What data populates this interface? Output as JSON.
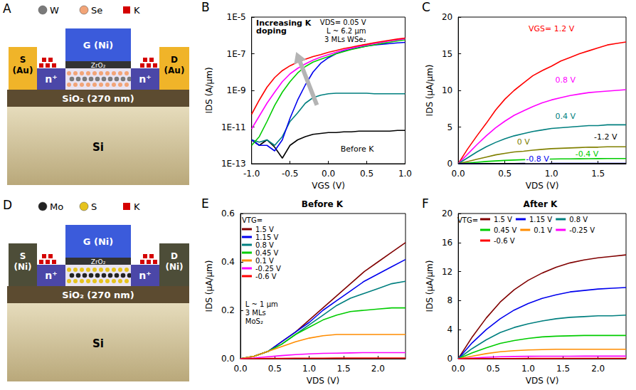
{
  "diagrams": [
    {
      "label": "A",
      "legend": [
        "W",
        "Se",
        "K"
      ],
      "gate": "G (Ni)",
      "dielectric": "ZrO₂",
      "source": "S (Au)",
      "drain": "D (Au)",
      "doped": "n⁺",
      "oxide": "SiO₂ (270 nm)",
      "substrate": "Si"
    },
    {
      "label": "D",
      "legend": [
        "Mo",
        "S",
        "K"
      ],
      "gate": "G (Ni)",
      "dielectric": "ZrO₂",
      "source": "S (Ni)",
      "drain": "D (Ni)",
      "doped": "n⁺",
      "oxide": "SiO₂ (270 nm)",
      "substrate": "Si"
    }
  ],
  "chart_data": [
    {
      "label": "B",
      "type": "line",
      "log": "y",
      "grid": false,
      "xlabel": "VGS (V)",
      "ylabel": "IDS (A/µm)",
      "annotations": [
        "Increasing K doping",
        "VDS= 0.05 V",
        "L ~ 6.2 µm",
        "3 MLs WSe₂",
        "Before K"
      ],
      "xlim": [
        -1,
        1
      ],
      "xticks": [
        {
          "value": -1,
          "label": "-1.0"
        },
        -0.5,
        {
          "value": 0,
          "label": "0.0"
        },
        0.5,
        {
          "value": 1,
          "label": "1.0"
        }
      ],
      "ylim": [
        1e-13,
        1e-05
      ],
      "yticks": [
        {
          "value": 1e-13,
          "label": "1E-13"
        },
        {
          "value": 1e-11,
          "label": "1E-11"
        },
        {
          "value": 1e-09,
          "label": "1E-9"
        },
        {
          "value": 1e-07,
          "label": "1E-7"
        },
        {
          "value": 1e-05,
          "label": "1E-5"
        }
      ],
      "x": [
        -1,
        -0.9,
        -0.8,
        -0.7,
        -0.6,
        -0.5,
        -0.4,
        -0.3,
        -0.2,
        -0.1,
        0,
        0.1,
        0.2,
        0.3,
        0.4,
        0.5,
        0.6,
        0.7,
        0.8,
        0.9,
        1
      ],
      "series": [
        {
          "color": "#000000",
          "values": [
            2e-12,
            1e-12,
            2e-12,
            8e-13,
            2e-13,
            1e-12,
            2e-12,
            3e-12,
            4e-12,
            4.5e-12,
            5e-12,
            5e-12,
            5.5e-12,
            5.5e-12,
            6e-12,
            6e-12,
            6e-12,
            6e-12,
            6e-12,
            6.5e-12,
            6.5e-12
          ]
        },
        {
          "color": "#007f7f",
          "values": [
            2e-12,
            1.5e-12,
            2e-12,
            1e-12,
            3e-12,
            2e-11,
            6e-11,
            2e-10,
            4e-10,
            5.5e-10,
            6.5e-10,
            7e-10,
            7e-10,
            7e-10,
            7e-10,
            7e-10,
            6.5e-10,
            6.5e-10,
            6.5e-10,
            6.5e-10,
            6.5e-10
          ]
        },
        {
          "color": "#0000ee",
          "values": [
            2e-12,
            1e-12,
            1e-12,
            5e-13,
            2e-12,
            3e-11,
            3e-10,
            2e-09,
            1e-08,
            3e-08,
            6e-08,
            1e-07,
            1.4e-07,
            1.8e-07,
            2.2e-07,
            2.6e-07,
            3e-07,
            3.3e-07,
            3.6e-07,
            3.9e-07,
            4.2e-07
          ]
        },
        {
          "color": "#00cc00",
          "values": [
            1e-12,
            3e-12,
            2e-11,
            1.5e-10,
            8e-10,
            3e-09,
            9e-09,
            2e-08,
            3.5e-08,
            5e-08,
            7e-08,
            1e-07,
            1.3e-07,
            1.7e-07,
            2.1e-07,
            2.6e-07,
            3.1e-07,
            3.7e-07,
            4.3e-07,
            5e-07,
            5.7e-07
          ]
        },
        {
          "color": "#ff00ff",
          "values": [
            8e-12,
            4e-11,
            2e-10,
            8e-10,
            3e-09,
            8e-09,
            1.6e-08,
            2.8e-08,
            4.5e-08,
            6.5e-08,
            9e-08,
            1.2e-07,
            1.6e-07,
            2e-07,
            2.5e-07,
            3e-07,
            3.6e-07,
            4.3e-07,
            5e-07,
            5.8e-07,
            6.6e-07
          ]
        },
        {
          "color": "#ff0000",
          "values": [
            5e-11,
            3e-10,
            1.5e-09,
            5e-09,
            1.2e-08,
            2.2e-08,
            3.5e-08,
            5e-08,
            7e-08,
            9e-08,
            1.2e-07,
            1.5e-07,
            1.9e-07,
            2.3e-07,
            2.8e-07,
            3.3e-07,
            4e-07,
            4.7e-07,
            5.5e-07,
            6.3e-07,
            7.2e-07
          ]
        }
      ]
    },
    {
      "label": "C",
      "type": "line",
      "grid": false,
      "xlabel": "VDS (V)",
      "ylabel": "IDS (µA/µm)",
      "xlim": [
        0,
        1.8
      ],
      "xticks": [
        {
          "value": 0,
          "label": "0.0"
        },
        0.5,
        {
          "value": 1,
          "label": "1.0"
        },
        1.5
      ],
      "ylim": [
        0,
        20
      ],
      "yticks": [
        0,
        5,
        10,
        15,
        20
      ],
      "x": [
        0,
        0.1,
        0.2,
        0.3,
        0.4,
        0.5,
        0.6,
        0.7,
        0.8,
        0.9,
        1,
        1.1,
        1.2,
        1.3,
        1.4,
        1.5,
        1.6,
        1.7,
        1.8
      ],
      "series": [
        {
          "label": "VGS= 1.2 V",
          "color": "#ff0000",
          "values": [
            0,
            2,
            3.8,
            5.5,
            7.3,
            8.8,
            10,
            11,
            12,
            12.7,
            13.3,
            14,
            14.5,
            15,
            15.4,
            15.8,
            16.2,
            16.4,
            16.6
          ]
        },
        {
          "label": "0.8 V",
          "color": "#ff00ff",
          "values": [
            0,
            1.3,
            2.6,
            3.8,
            4.9,
            5.8,
            6.6,
            7.2,
            7.8,
            8.3,
            8.7,
            9,
            9.3,
            9.5,
            9.7,
            9.8,
            9.9,
            10,
            10.1
          ]
        },
        {
          "label": "0.4 V",
          "color": "#007f7f",
          "values": [
            0,
            0.8,
            1.6,
            2.3,
            2.9,
            3.4,
            3.8,
            4.1,
            4.4,
            4.6,
            4.8,
            4.9,
            5,
            5.1,
            5.2,
            5.2,
            5.3,
            5.3,
            5.3
          ]
        },
        {
          "label": "0 V",
          "color": "#808000",
          "values": [
            0,
            0.3,
            0.6,
            0.9,
            1.2,
            1.4,
            1.6,
            1.7,
            1.85,
            1.95,
            2.05,
            2.1,
            2.15,
            2.2,
            2.25,
            2.25,
            2.3,
            2.3,
            2.3
          ]
        },
        {
          "label": "-0.4 V",
          "color": "#00cc00",
          "values": [
            0,
            0.1,
            0.2,
            0.3,
            0.38,
            0.45,
            0.5,
            0.55,
            0.58,
            0.61,
            0.63,
            0.65,
            0.66,
            0.67,
            0.68,
            0.69,
            0.7,
            0.7,
            0.7
          ]
        },
        {
          "label": "-0.8 V",
          "color": "#0000ee",
          "values": [
            0,
            0.01,
            0.02,
            0.02,
            0.03,
            0.03,
            0.03,
            0.04,
            0.04,
            0.04,
            0.04,
            0.04,
            0.05,
            0.05,
            0.05,
            0.05,
            0.05,
            0.05,
            0.05
          ]
        },
        {
          "label": "-1.2 V",
          "color": "#000000",
          "values": [
            0,
            0,
            0,
            0.01,
            0.01,
            0.01,
            0.01,
            0.01,
            0.01,
            0.01,
            0.01,
            0.01,
            0.01,
            0.01,
            0.01,
            0.01,
            0.01,
            0.01,
            0.01
          ]
        }
      ]
    },
    {
      "label": "E",
      "type": "line",
      "grid": false,
      "title": "Before K",
      "legend": "top-left",
      "legend_title": "VTG=",
      "xlabel": "VDS (V)",
      "ylabel": "IDS (µA/µm)",
      "annotations": [
        "L ~ 1 µm",
        "3 MLs",
        "MoS₂"
      ],
      "xlim": [
        0,
        2.4
      ],
      "xticks": [
        {
          "value": 0,
          "label": "0.0"
        },
        0.5,
        {
          "value": 1,
          "label": "1.0"
        },
        1.5,
        {
          "value": 2,
          "label": "2.0"
        }
      ],
      "ylim": [
        0,
        0.6
      ],
      "yticks": [
        {
          "value": 0,
          "label": "0.0"
        },
        0.2,
        0.4,
        0.6
      ],
      "x": [
        0,
        0.2,
        0.4,
        0.6,
        0.8,
        1,
        1.2,
        1.4,
        1.6,
        1.8,
        2,
        2.2,
        2.4
      ],
      "series": [
        {
          "name": "1.5 V",
          "color": "#800000",
          "values": [
            0,
            0.01,
            0.03,
            0.07,
            0.11,
            0.16,
            0.21,
            0.26,
            0.31,
            0.36,
            0.4,
            0.44,
            0.48
          ]
        },
        {
          "name": "1.15 V",
          "color": "#0000ee",
          "values": [
            0,
            0.01,
            0.03,
            0.07,
            0.11,
            0.15,
            0.2,
            0.24,
            0.28,
            0.32,
            0.35,
            0.38,
            0.41
          ]
        },
        {
          "name": "0.8 V",
          "color": "#007f7f",
          "values": [
            0,
            0.01,
            0.03,
            0.06,
            0.1,
            0.14,
            0.18,
            0.22,
            0.25,
            0.27,
            0.29,
            0.31,
            0.32
          ]
        },
        {
          "name": "0.45 V",
          "color": "#00cc00",
          "values": [
            0,
            0.01,
            0.03,
            0.06,
            0.1,
            0.13,
            0.16,
            0.18,
            0.195,
            0.2,
            0.205,
            0.21,
            0.21
          ]
        },
        {
          "name": "0.1 V",
          "color": "#ff8c00",
          "values": [
            0,
            0.01,
            0.03,
            0.05,
            0.07,
            0.085,
            0.095,
            0.1,
            0.1,
            0.1,
            0.1,
            0.1,
            0.1
          ]
        },
        {
          "name": "-0.25 V",
          "color": "#ff00ff",
          "values": [
            0,
            0.003,
            0.008,
            0.013,
            0.017,
            0.02,
            0.022,
            0.023,
            0.024,
            0.025,
            0.025,
            0.025,
            0.025
          ]
        },
        {
          "name": "-0.6 V",
          "color": "#ff0000",
          "values": [
            0,
            0,
            0.001,
            0.001,
            0.002,
            0.002,
            0.002,
            0.003,
            0.003,
            0.003,
            0.003,
            0.003,
            0.003
          ]
        }
      ]
    },
    {
      "label": "F",
      "type": "line",
      "grid": false,
      "title": "After K",
      "legend": "top",
      "legend_title": "VTG=",
      "xlabel": "VDS (V)",
      "ylabel": "IDS (µA/µm)",
      "xlim": [
        0,
        2.4
      ],
      "xticks": [
        {
          "value": 0,
          "label": "0.0"
        },
        0.5,
        {
          "value": 1,
          "label": "1.0"
        },
        1.5,
        {
          "value": 2,
          "label": "2.0"
        }
      ],
      "ylim": [
        0,
        20
      ],
      "yticks": [
        0,
        4,
        8,
        12,
        16,
        20
      ],
      "x": [
        0,
        0.2,
        0.4,
        0.6,
        0.8,
        1,
        1.2,
        1.4,
        1.6,
        1.8,
        2,
        2.2,
        2.4
      ],
      "series": [
        {
          "name": "1.5 V",
          "color": "#800000",
          "values": [
            0,
            3,
            5.6,
            7.8,
            9.5,
            10.8,
            11.8,
            12.6,
            13.2,
            13.6,
            13.9,
            14.1,
            14.3
          ]
        },
        {
          "name": "1.15 V",
          "color": "#0000ee",
          "values": [
            0,
            2.2,
            4,
            5.5,
            6.7,
            7.6,
            8.3,
            8.8,
            9.2,
            9.4,
            9.6,
            9.7,
            9.8
          ]
        },
        {
          "name": "0.8 V",
          "color": "#007f7f",
          "values": [
            0,
            1.4,
            2.6,
            3.6,
            4.3,
            4.8,
            5.2,
            5.5,
            5.7,
            5.8,
            5.9,
            5.9,
            6
          ]
        },
        {
          "name": "0.45 V",
          "color": "#00cc00",
          "values": [
            0,
            0.8,
            1.5,
            2.1,
            2.5,
            2.8,
            3,
            3.1,
            3.15,
            3.2,
            3.2,
            3.2,
            3.2
          ]
        },
        {
          "name": "0.1 V",
          "color": "#ff8c00",
          "values": [
            0,
            0.35,
            0.7,
            0.95,
            1.1,
            1.2,
            1.25,
            1.3,
            1.3,
            1.3,
            1.3,
            1.3,
            1.3
          ]
        },
        {
          "name": "-0.25 V",
          "color": "#ff00ff",
          "values": [
            0,
            0.1,
            0.2,
            0.27,
            0.31,
            0.33,
            0.34,
            0.35,
            0.35,
            0.36,
            0.36,
            0.36,
            0.36
          ]
        },
        {
          "name": "-0.6 V",
          "color": "#ff0000",
          "values": [
            0,
            0.01,
            0.02,
            0.03,
            0.03,
            0.04,
            0.04,
            0.04,
            0.05,
            0.05,
            0.05,
            0.05,
            0.05
          ]
        }
      ]
    }
  ]
}
